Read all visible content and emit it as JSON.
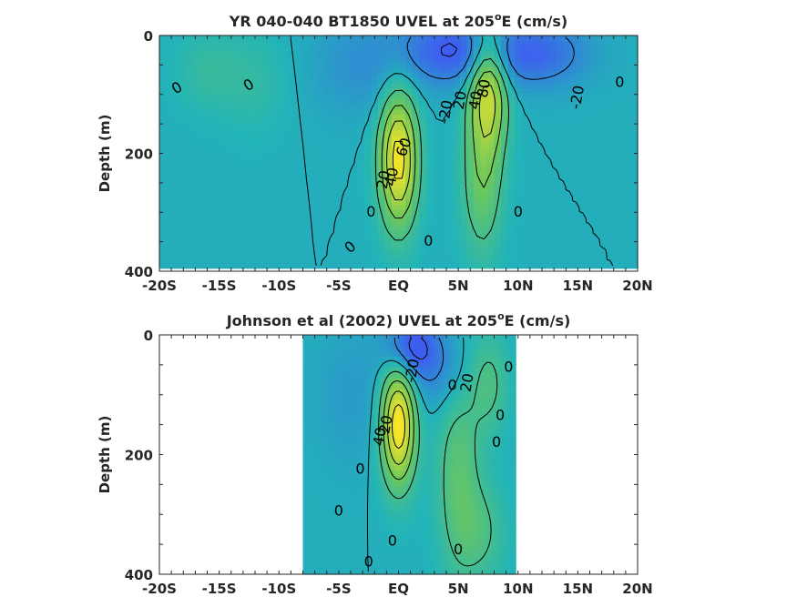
{
  "chart_data": [
    {
      "type": "heatmap",
      "title_main": "YR 040-040 BT1850 UVEL at 205",
      "title_sup": "o",
      "title_tail": "E (cm/s)",
      "ylabel": "Depth (m)",
      "xlim": [
        -20,
        20
      ],
      "ylim": [
        0,
        400
      ],
      "y_reversed": true,
      "x_ticks": [
        {
          "value": -20,
          "label": "-20S"
        },
        {
          "value": -15,
          "label": "-15S"
        },
        {
          "value": -10,
          "label": "-10S"
        },
        {
          "value": -5,
          "label": "-5S"
        },
        {
          "value": 0,
          "label": "EQ"
        },
        {
          "value": 5,
          "label": "5N"
        },
        {
          "value": 10,
          "label": "10N"
        },
        {
          "value": 15,
          "label": "15N"
        },
        {
          "value": 20,
          "label": "20N"
        }
      ],
      "y_ticks": [
        {
          "value": 0,
          "label": "0"
        },
        {
          "value": 200,
          "label": "200"
        },
        {
          "value": 400,
          "label": "400"
        }
      ],
      "colormap_range": [
        -40,
        90
      ],
      "colors": {
        "low": "#3e5ef0",
        "mid": "#22b4b8",
        "green": "#6fc85a",
        "high": "#f8e528"
      },
      "data_extent": {
        "x": [
          -20,
          20
        ],
        "y": [
          0,
          395
        ]
      },
      "features": [
        {
          "x": 0,
          "y": 210,
          "sx": 1.1,
          "sy": 80,
          "amp": 90
        },
        {
          "x": 7.5,
          "y": 90,
          "sx": 1.1,
          "sy": 75,
          "amp": 70
        },
        {
          "x": 7,
          "y": 250,
          "sx": 1.2,
          "sy": 90,
          "amp": 35
        },
        {
          "x": 4.5,
          "y": 25,
          "sx": 3,
          "sy": 40,
          "amp": -40
        },
        {
          "x": 11.5,
          "y": 30,
          "sx": 3,
          "sy": 40,
          "amp": -35
        },
        {
          "x": -3,
          "y": 50,
          "sx": 3,
          "sy": 60,
          "amp": -15
        },
        {
          "x": -16,
          "y": 60,
          "sx": 2,
          "sy": 50,
          "amp": 12
        },
        {
          "x": -12,
          "y": 80,
          "sx": 2,
          "sy": 60,
          "amp": 10
        }
      ],
      "contour_labels": [
        {
          "x": -18.5,
          "y": 90,
          "text": "0",
          "rot": -30
        },
        {
          "x": -12.5,
          "y": 85,
          "text": "0",
          "rot": -30
        },
        {
          "x": 0.5,
          "y": 190,
          "text": "60",
          "rot": -70
        },
        {
          "x": -0.5,
          "y": 240,
          "text": "40",
          "rot": -80
        },
        {
          "x": -1.2,
          "y": 245,
          "text": "20",
          "rot": -80
        },
        {
          "x": -2.3,
          "y": 300,
          "text": "0",
          "rot": 0
        },
        {
          "x": -4,
          "y": 360,
          "text": "0",
          "rot": -40
        },
        {
          "x": 2.5,
          "y": 350,
          "text": "0",
          "rot": 0
        },
        {
          "x": 4,
          "y": 130,
          "text": "-20",
          "rot": -80
        },
        {
          "x": 5.2,
          "y": 110,
          "text": "20",
          "rot": -80
        },
        {
          "x": 6.5,
          "y": 110,
          "text": "40",
          "rot": -80
        },
        {
          "x": 7.2,
          "y": 90,
          "text": "80",
          "rot": -80
        },
        {
          "x": 10,
          "y": 300,
          "text": "0",
          "rot": 0
        },
        {
          "x": 15,
          "y": 105,
          "text": "-20",
          "rot": -80
        },
        {
          "x": 18.5,
          "y": 80,
          "text": "0",
          "rot": 0
        }
      ]
    },
    {
      "type": "heatmap",
      "title_main": "Johnson et al (2002) UVEL at 205",
      "title_sup": "o",
      "title_tail": "E (cm/s)",
      "ylabel": "Depth (m)",
      "xlim": [
        -20,
        20
      ],
      "ylim": [
        0,
        400
      ],
      "y_reversed": true,
      "x_ticks": [
        {
          "value": -20,
          "label": "-20S"
        },
        {
          "value": -15,
          "label": "-15S"
        },
        {
          "value": -10,
          "label": "-10S"
        },
        {
          "value": -5,
          "label": "-5S"
        },
        {
          "value": 0,
          "label": "EQ"
        },
        {
          "value": 5,
          "label": "5N"
        },
        {
          "value": 10,
          "label": "10N"
        },
        {
          "value": 15,
          "label": "15N"
        },
        {
          "value": 20,
          "label": "20N"
        }
      ],
      "y_ticks": [
        {
          "value": 0,
          "label": "0"
        },
        {
          "value": 200,
          "label": "200"
        },
        {
          "value": 400,
          "label": "400"
        }
      ],
      "colormap_range": [
        -40,
        90
      ],
      "colors": {
        "low": "#3e5ef0",
        "mid": "#22b4b8",
        "green": "#6fc85a",
        "high": "#f8e528"
      },
      "data_extent": {
        "x": [
          -8,
          9.8
        ],
        "y": [
          0,
          400
        ]
      },
      "features": [
        {
          "x": 0,
          "y": 150,
          "sx": 1,
          "sy": 70,
          "amp": 95
        },
        {
          "x": 5,
          "y": 230,
          "sx": 1.3,
          "sy": 120,
          "amp": 30
        },
        {
          "x": 1,
          "y": 20,
          "sx": 1.5,
          "sy": 35,
          "amp": -45
        },
        {
          "x": 3.5,
          "y": 60,
          "sx": 2,
          "sy": 50,
          "amp": -20
        },
        {
          "x": 7.5,
          "y": 80,
          "sx": 1.2,
          "sy": 60,
          "amp": 25
        },
        {
          "x": -4,
          "y": 100,
          "sx": 2,
          "sy": 80,
          "amp": -10
        },
        {
          "x": 7,
          "y": 330,
          "sx": 1.5,
          "sy": 60,
          "amp": 20
        }
      ],
      "contour_labels": [
        {
          "x": 1.2,
          "y": 60,
          "text": "-20",
          "rot": -80
        },
        {
          "x": 4.5,
          "y": 85,
          "text": "0",
          "rot": 0
        },
        {
          "x": 5.8,
          "y": 80,
          "text": "20",
          "rot": -80
        },
        {
          "x": 9.2,
          "y": 55,
          "text": "0",
          "rot": 0
        },
        {
          "x": 8.5,
          "y": 135,
          "text": "0",
          "rot": 0
        },
        {
          "x": 8.2,
          "y": 180,
          "text": "0",
          "rot": 0
        },
        {
          "x": -1.0,
          "y": 150,
          "text": "20",
          "rot": -80
        },
        {
          "x": -1.5,
          "y": 170,
          "text": "40",
          "rot": -80
        },
        {
          "x": -3.2,
          "y": 225,
          "text": "0",
          "rot": 0
        },
        {
          "x": -5,
          "y": 295,
          "text": "0",
          "rot": 0
        },
        {
          "x": -0.5,
          "y": 345,
          "text": "0",
          "rot": 0
        },
        {
          "x": 5,
          "y": 360,
          "text": "0",
          "rot": 0
        },
        {
          "x": -2.5,
          "y": 380,
          "text": "0",
          "rot": 0
        }
      ]
    }
  ]
}
